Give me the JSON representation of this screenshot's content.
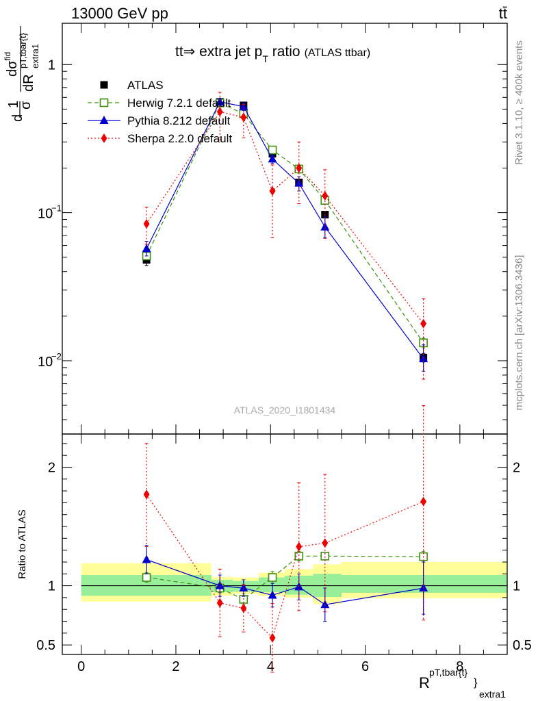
{
  "header": {
    "energy": "13000 GeV pp",
    "process": "tt̄",
    "rivet": "Rivet 3.1.10, ≥ 400k events",
    "source": "mcplots.cern.ch [arXiv:1306.3436]",
    "analysis": "ATLAS_2020_I1801434"
  },
  "chart_data": [
    {
      "type": "line",
      "panel": "main",
      "title": "tt⇒ extra jet p",
      "title_sub": "T",
      "title_tail": " ratio",
      "title_small": "(ATLAS ttbar)",
      "ylabel": {
        "d1": "d",
        "one": "1",
        "sigma": "σ",
        "dsig": "dσ",
        "fid": "fid",
        "dR": "dR",
        "sup": "pT,tbar{t}",
        "sub": "extra1"
      },
      "yscale": "log",
      "ylim": [
        0.0032,
        1.9
      ],
      "xlim": [
        -0.4,
        9.0
      ],
      "yticks": [
        {
          "value": 1,
          "label": "1"
        },
        {
          "value": 0.1,
          "base": "10",
          "exp": "−1"
        },
        {
          "value": 0.01,
          "base": "10",
          "exp": "−2"
        }
      ],
      "legend_position": "top-left",
      "series": [
        {
          "name": "ATLAS",
          "color": "#000000",
          "marker": "square-filled",
          "line": "none",
          "x": [
            1.38,
            2.93,
            3.43,
            4.04,
            4.6,
            5.15,
            7.23
          ],
          "y": [
            0.048,
            0.56,
            0.53,
            0.25,
            0.16,
            0.097,
            0.0105
          ],
          "err_hi": [
            0.052,
            0.57,
            0.54,
            0.255,
            0.165,
            0.101,
            0.0112
          ],
          "err_lo": [
            0.044,
            0.55,
            0.52,
            0.245,
            0.155,
            0.093,
            0.0098
          ]
        },
        {
          "name": "Herwig 7.2.1 default",
          "color": "#3e8e0e",
          "marker": "square-open",
          "line": "dashed",
          "x": [
            1.38,
            2.93,
            3.43,
            4.04,
            4.6,
            5.15,
            7.23
          ],
          "y": [
            0.051,
            0.55,
            0.465,
            0.265,
            0.197,
            0.121,
            0.0132
          ],
          "err_hi": [
            0.053,
            0.57,
            0.49,
            0.28,
            0.21,
            0.128,
            0.0142
          ],
          "err_lo": [
            0.049,
            0.53,
            0.44,
            0.25,
            0.185,
            0.114,
            0.0122
          ]
        },
        {
          "name": "Pythia 8.212 default",
          "color": "#0000cc",
          "marker": "triangle-filled",
          "line": "solid",
          "x": [
            1.38,
            2.93,
            3.43,
            4.04,
            4.6,
            5.15,
            7.23
          ],
          "y": [
            0.057,
            0.56,
            0.52,
            0.23,
            0.158,
            0.08,
            0.0103
          ],
          "err_hi": [
            0.064,
            0.59,
            0.55,
            0.245,
            0.175,
            0.094,
            0.0128
          ],
          "err_lo": [
            0.051,
            0.53,
            0.49,
            0.215,
            0.14,
            0.068,
            0.0085
          ]
        },
        {
          "name": "Sherpa 2.2.0 default",
          "color": "#ee0000",
          "marker": "diamond-filled",
          "line": "dotted",
          "x": [
            1.38,
            2.93,
            3.43,
            4.04,
            4.6,
            5.15,
            7.23
          ],
          "y": [
            0.084,
            0.48,
            0.44,
            0.14,
            0.2,
            0.13,
            0.0178
          ],
          "err_hi": [
            0.109,
            0.65,
            0.54,
            0.21,
            0.3,
            0.195,
            0.0262
          ],
          "err_lo": [
            0.061,
            0.31,
            0.32,
            0.068,
            0.115,
            0.067,
            0.0075
          ]
        }
      ]
    },
    {
      "type": "line",
      "panel": "ratio",
      "ylabel": "Ratio to ATLAS",
      "xlabel": {
        "base": "R",
        "sup": "pT,tbar{t}",
        "sup_close": "}",
        "sub": "extra1"
      },
      "ylim": [
        0.42,
        2.28
      ],
      "xlim": [
        -0.4,
        9.0
      ],
      "yticks": [
        {
          "value": 2,
          "label": "2"
        },
        {
          "value": 1,
          "label": "1"
        },
        {
          "value": 0.5,
          "label": "0.5"
        }
      ],
      "xticks": [
        {
          "value": 0,
          "label": "0"
        },
        {
          "value": 2,
          "label": "2"
        },
        {
          "value": 4,
          "label": "4"
        },
        {
          "value": 6,
          "label": "6"
        },
        {
          "value": 8,
          "label": "8"
        }
      ],
      "uncertainty_bands": [
        {
          "x0": 0.0,
          "x1": 2.75,
          "stat_lo": 0.915,
          "stat_hi": 1.09,
          "tot_lo": 0.865,
          "tot_hi": 1.19
        },
        {
          "x0": 2.75,
          "x1": 3.2,
          "stat_lo": 0.945,
          "stat_hi": 1.05,
          "tot_lo": 0.915,
          "tot_hi": 1.075
        },
        {
          "x0": 3.2,
          "x1": 3.75,
          "stat_lo": 0.95,
          "stat_hi": 1.04,
          "tot_lo": 0.93,
          "tot_hi": 1.07
        },
        {
          "x0": 3.75,
          "x1": 4.3,
          "stat_lo": 0.945,
          "stat_hi": 1.07,
          "tot_lo": 0.915,
          "tot_hi": 1.11
        },
        {
          "x0": 4.3,
          "x1": 4.9,
          "stat_lo": 0.925,
          "stat_hi": 1.085,
          "tot_lo": 0.9,
          "tot_hi": 1.14
        },
        {
          "x0": 4.9,
          "x1": 5.5,
          "stat_lo": 0.905,
          "stat_hi": 1.1,
          "tot_lo": 0.845,
          "tot_hi": 1.18
        },
        {
          "x0": 5.5,
          "x1": 9.0,
          "stat_lo": 0.94,
          "stat_hi": 1.09,
          "tot_lo": 0.895,
          "tot_hi": 1.2
        }
      ],
      "series": [
        {
          "name": "Herwig 7.2.1 default",
          "color": "#3e8e0e",
          "marker": "square-open",
          "line": "dashed",
          "x": [
            1.38,
            2.93,
            3.43,
            4.04,
            4.6,
            5.15,
            7.23
          ],
          "y": [
            1.07,
            0.98,
            0.885,
            1.07,
            1.25,
            1.25,
            1.245
          ],
          "err_hi": [
            1.11,
            1.02,
            0.93,
            1.12,
            1.29,
            1.28,
            1.29
          ],
          "err_lo": [
            1.03,
            0.94,
            0.84,
            1.02,
            1.21,
            1.22,
            1.2
          ]
        },
        {
          "name": "Pythia 8.212 default",
          "color": "#0000cc",
          "marker": "triangle-filled",
          "line": "solid",
          "x": [
            1.38,
            2.93,
            3.43,
            4.04,
            4.6,
            5.15,
            7.23
          ],
          "y": [
            1.22,
            1.0,
            0.98,
            0.92,
            0.99,
            0.84,
            0.98
          ],
          "err_hi": [
            1.34,
            1.09,
            1.05,
            1.02,
            1.1,
            0.98,
            1.2
          ],
          "err_lo": [
            1.1,
            0.91,
            0.91,
            0.82,
            0.88,
            0.7,
            0.76
          ]
        },
        {
          "name": "Sherpa 2.2.0 default",
          "color": "#ee0000",
          "marker": "diamond-filled",
          "line": "dotted",
          "x": [
            1.38,
            2.93,
            3.43,
            4.04,
            4.6,
            5.15,
            7.23
          ],
          "y": [
            1.77,
            0.855,
            0.81,
            0.56,
            1.33,
            1.36,
            1.71
          ],
          "err_hi": [
            2.2,
            1.14,
            1.01,
            0.85,
            1.87,
            1.94,
            2.52
          ],
          "err_lo": [
            1.33,
            0.57,
            0.61,
            0.27,
            0.79,
            0.78,
            0.71
          ]
        }
      ]
    }
  ]
}
